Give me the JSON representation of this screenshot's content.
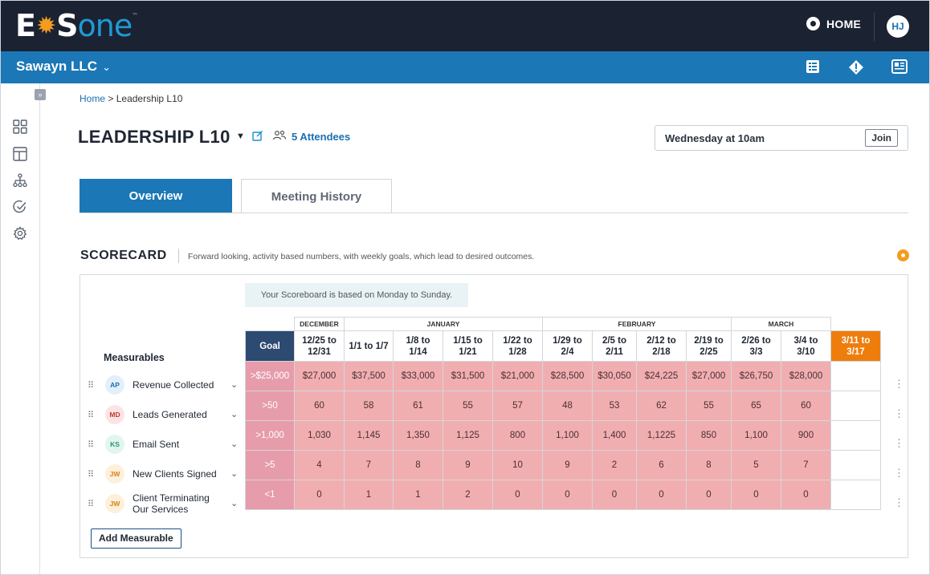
{
  "app": {
    "logo_parts": [
      "E",
      "S",
      "one"
    ],
    "home_label": "HOME",
    "user_initials": "HJ",
    "org_name": "Sawayn LLC"
  },
  "icons": {
    "org_chevron": "chevron-down-icon",
    "toolbar": [
      "checklist-icon",
      "alert-diamond-icon",
      "newspaper-icon"
    ],
    "sidebar": [
      "expand-icon",
      "dashboard-grid-icon",
      "layout-icon",
      "org-chart-icon",
      "check-circle-icon",
      "gear-icon"
    ]
  },
  "breadcrumb": {
    "home": "Home",
    "separator": ">",
    "current": "Leadership L10"
  },
  "meeting": {
    "title": "LEADERSHIP L10",
    "attendees": "5 Attendees",
    "schedule": "Wednesday at 10am",
    "join_label": "Join"
  },
  "tabs": [
    {
      "label": "Overview",
      "active": true
    },
    {
      "label": "Meeting History",
      "active": false
    }
  ],
  "scorecard": {
    "title": "SCORECARD",
    "description": "Forward looking, activity based numbers, with weekly goals, which lead to desired outcomes.",
    "note": "Your Scoreboard is based on Monday to Sunday.",
    "measurables_header": "Measurables",
    "goal_header": "Goal",
    "months": [
      {
        "label": "DECEMBER",
        "span": 1
      },
      {
        "label": "JANUARY",
        "span": 4
      },
      {
        "label": "FEBRUARY",
        "span": 4
      },
      {
        "label": "MARCH",
        "span": 2
      }
    ],
    "weeks": [
      "12/25 to 12/31",
      "1/1 to 1/7",
      "1/8 to 1/14",
      "1/15 to 1/21",
      "1/22 to 1/28",
      "1/29 to 2/4",
      "2/5 to 2/11",
      "2/12 to 2/18",
      "2/19 to 2/25",
      "2/26 to 3/3",
      "3/4 to 3/10",
      "3/11 to 3/17"
    ],
    "current_week_index": 11,
    "rows": [
      {
        "initials": "AP",
        "badge_bg": "#e3f0fb",
        "badge_fg": "#1a6fb0",
        "name": "Revenue Collected",
        "goal": ">$25,000",
        "values": [
          "$27,000",
          "$37,500",
          "$33,000",
          "$31,500",
          "$21,000",
          "$28,500",
          "$30,050",
          "$24,225",
          "$27,000",
          "$26,750",
          "$28,000",
          ""
        ]
      },
      {
        "initials": "MD",
        "badge_bg": "#fbe4e6",
        "badge_fg": "#c0392b",
        "name": "Leads Generated",
        "goal": ">50",
        "values": [
          "60",
          "58",
          "61",
          "55",
          "57",
          "48",
          "53",
          "62",
          "55",
          "65",
          "60",
          ""
        ]
      },
      {
        "initials": "KS",
        "badge_bg": "#e2f5ef",
        "badge_fg": "#1e9b6e",
        "name": "Email Sent",
        "goal": ">1,000",
        "values": [
          "1,030",
          "1,145",
          "1,350",
          "1,125",
          "800",
          "1,100",
          "1,400",
          "1,1225",
          "850",
          "1,100",
          "900",
          ""
        ]
      },
      {
        "initials": "JW",
        "badge_bg": "#fdf0dc",
        "badge_fg": "#d3860d",
        "name": "New Clients Signed",
        "goal": ">5",
        "values": [
          "4",
          "7",
          "8",
          "9",
          "10",
          "9",
          "2",
          "6",
          "8",
          "5",
          "7",
          ""
        ]
      },
      {
        "initials": "JW",
        "badge_bg": "#fdf0dc",
        "badge_fg": "#d3860d",
        "name": "Client Terminating Our Services",
        "goal": "<1",
        "values": [
          "0",
          "1",
          "1",
          "2",
          "0",
          "0",
          "0",
          "0",
          "0",
          "0",
          "0",
          ""
        ]
      }
    ],
    "add_label": "Add Measurable"
  },
  "colors": {
    "topbar": "#1b2232",
    "brand_blue": "#1b77b6",
    "accent_orange": "#ef7d0c",
    "goal_header": "#2d4a70",
    "cell_red": "#f1aeb0"
  }
}
